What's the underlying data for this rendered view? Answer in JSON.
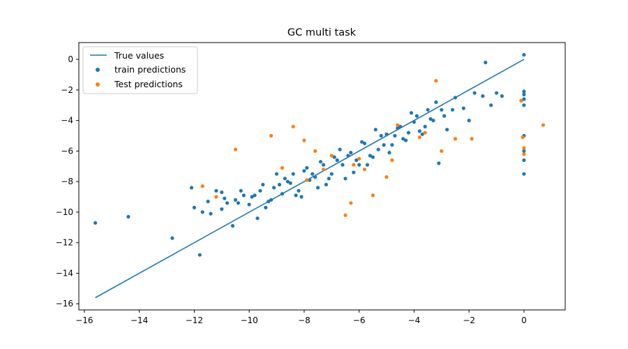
{
  "chart_data": {
    "type": "scatter",
    "title": "GC multi task",
    "xlabel": "",
    "ylabel": "",
    "xlim": [
      -16.2,
      1.5
    ],
    "ylim": [
      -16.4,
      1.1
    ],
    "xticks": [
      -16,
      -14,
      -12,
      -10,
      -8,
      -6,
      -4,
      -2,
      0
    ],
    "yticks": [
      0,
      -2,
      -4,
      -6,
      -8,
      -10,
      -12,
      -14,
      -16
    ],
    "grid": false,
    "legend_position": "top-left",
    "legend": [
      "True values",
      "train predictions",
      "Test predictions"
    ],
    "colors": {
      "line": "#1f77b4",
      "train": "#1f77b4",
      "test": "#ff7f0e"
    },
    "series": [
      {
        "name": "True values",
        "kind": "line",
        "x": [
          -15.6,
          0
        ],
        "y": [
          -15.6,
          0
        ]
      },
      {
        "name": "train predictions",
        "kind": "scatter",
        "x": [
          -15.6,
          -14.4,
          -12.8,
          -11.8,
          -12.1,
          -12.0,
          -11.5,
          -11.4,
          -11.2,
          -11.0,
          -10.8,
          -10.5,
          -10.3,
          -10.0,
          -9.8,
          -9.5,
          -9.3,
          -9.0,
          -8.8,
          -8.5,
          -8.3,
          -8.0,
          -7.8,
          -7.5,
          -7.3,
          -7.0,
          -6.8,
          -6.5,
          -6.3,
          -6.0,
          -5.8,
          -5.5,
          -5.3,
          -5.0,
          -4.8,
          -4.5,
          -4.3,
          -4.0,
          -3.8,
          -3.5,
          -3.3,
          -3.0,
          -2.8,
          -2.5,
          -2.2,
          -2.0,
          -1.8,
          -1.5,
          -1.2,
          -1.0,
          -0.8,
          -0.1,
          0.0,
          0.0,
          0.0,
          0.0,
          0.0,
          0.0,
          0.0,
          0.0,
          0.0,
          -1.4,
          -11.0,
          -10.4,
          -9.9,
          -9.6,
          -9.1,
          -8.7,
          -8.2,
          -7.9,
          -7.6,
          -7.2,
          -6.9,
          -6.6,
          -6.2,
          -5.9,
          -5.6,
          -5.2,
          -4.9,
          -4.6,
          -4.2,
          -3.9,
          -3.6,
          -3.2,
          -2.9,
          -2.6,
          -11.7,
          -10.9,
          -10.2,
          -9.4,
          -8.9,
          -8.4,
          -7.7,
          -7.4,
          -6.7,
          -6.4,
          -5.7,
          -5.4,
          -4.7,
          -4.4,
          -3.7,
          -3.4,
          -9.7,
          -9.2,
          -8.6,
          -8.1,
          -7.1,
          -6.1,
          -5.1,
          -4.1,
          -10.6,
          -3.1
        ],
        "y": [
          -10.7,
          -10.3,
          -11.7,
          -12.8,
          -8.4,
          -9.7,
          -9.3,
          -10.1,
          -8.6,
          -9.8,
          -9.4,
          -9.2,
          -8.6,
          -9.5,
          -8.9,
          -8.2,
          -9.3,
          -7.5,
          -8.8,
          -8.1,
          -8.9,
          -7.3,
          -7.9,
          -8.4,
          -6.9,
          -7.5,
          -6.6,
          -7.8,
          -6.1,
          -6.9,
          -5.5,
          -6.4,
          -5.9,
          -4.9,
          -5.6,
          -4.4,
          -5.3,
          -4.1,
          -4.7,
          -3.3,
          -4.0,
          -3.3,
          -4.6,
          -2.5,
          -3.2,
          -4.0,
          -2.2,
          -2.4,
          -3.0,
          -2.2,
          -2.4,
          -2.7,
          0.3,
          -2.1,
          -2.3,
          -2.6,
          -3.0,
          -6.0,
          -6.6,
          -7.5,
          -5.0,
          -0.2,
          -8.7,
          -9.4,
          -9.0,
          -8.6,
          -8.4,
          -7.8,
          -8.6,
          -7.1,
          -7.7,
          -8.2,
          -6.4,
          -6.9,
          -7.4,
          -5.4,
          -6.3,
          -5.0,
          -6.1,
          -4.5,
          -4.8,
          -3.7,
          -4.4,
          -2.8,
          -3.7,
          -3.3,
          -10.0,
          -9.1,
          -8.9,
          -9.7,
          -8.2,
          -7.5,
          -7.5,
          -6.7,
          -5.9,
          -6.3,
          -6.9,
          -4.6,
          -5.0,
          -5.2,
          -4.9,
          -3.9,
          -10.4,
          -9.2,
          -8.0,
          -9.0,
          -7.8,
          -6.6,
          -5.6,
          -3.5,
          -10.9,
          -6.8
        ]
      },
      {
        "name": "Test predictions",
        "kind": "scatter",
        "x": [
          0.7,
          -0.1,
          -0.05,
          0.0,
          0.0,
          -1.9,
          -2.5,
          -3.0,
          -3.2,
          -3.8,
          -4.6,
          -5.0,
          -5.5,
          -6.0,
          -6.3,
          -6.5,
          -7.0,
          -7.3,
          -7.6,
          -8.0,
          -8.4,
          -8.8,
          -9.2,
          -10.5,
          -11.2,
          -11.7,
          -5.8,
          -4.8,
          -3.6,
          -7.9,
          -6.2
        ],
        "y": [
          -4.3,
          -2.7,
          -5.1,
          -5.8,
          -6.2,
          -5.2,
          -5.2,
          -6.0,
          -1.4,
          -5.1,
          -4.3,
          -7.7,
          -8.9,
          -6.5,
          -9.4,
          -10.2,
          -6.3,
          -7.2,
          -6.0,
          -5.3,
          -4.4,
          -7.1,
          -5.0,
          -5.9,
          -9.0,
          -8.3,
          -7.2,
          -6.6,
          -4.8,
          -7.9,
          -6.9
        ]
      }
    ]
  }
}
